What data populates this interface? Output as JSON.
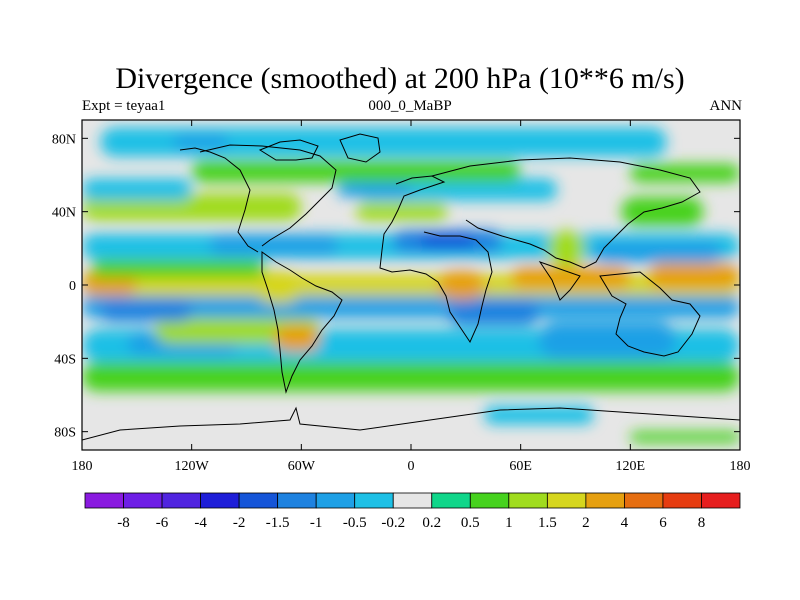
{
  "chart_data": {
    "type": "heatmap",
    "title": "Divergence (smoothed) at 200 hPa (10**6 m/s)",
    "subtitle_left": "Expt = teyaa1",
    "subtitle_center": "000_0_MaBP",
    "subtitle_right": "ANN",
    "x_axis": {
      "range": [
        -180,
        180
      ],
      "ticks": [
        -180,
        -120,
        -60,
        0,
        60,
        120,
        180
      ],
      "tick_labels": [
        "180",
        "120W",
        "60W",
        "0",
        "60E",
        "120E",
        "180"
      ]
    },
    "y_axis": {
      "range": [
        -90,
        90
      ],
      "ticks": [
        80,
        40,
        0,
        -40,
        -80
      ],
      "tick_labels": [
        "80N",
        "40N",
        "0",
        "40S",
        "80S"
      ]
    },
    "colorbar": {
      "labels": [
        "-8",
        "-6",
        "-4",
        "-2",
        "-1.5",
        "-1",
        "-0.5",
        "-0.2",
        "0.2",
        "0.5",
        "1",
        "1.5",
        "2",
        "4",
        "6",
        "8"
      ],
      "colors": [
        "#8a1ae0",
        "#6e1ee6",
        "#5024e0",
        "#1e1ed8",
        "#1555d8",
        "#1e82e0",
        "#1ea0e6",
        "#1ec0e6",
        "#e6e6e6",
        "#10d68a",
        "#46d21e",
        "#a0dc1e",
        "#d6d61e",
        "#e6a010",
        "#e66e10",
        "#e63c10",
        "#e61e1e"
      ]
    },
    "field_regions": [
      {
        "level": 0.5,
        "lon": [
          -180,
          180
        ],
        "lat": [
          -58,
          -42
        ]
      },
      {
        "level": -0.5,
        "lon": [
          -180,
          180
        ],
        "lat": [
          -42,
          -24
        ]
      },
      {
        "level": -1,
        "lon": [
          -155,
          -95
        ],
        "lat": [
          -38,
          -26
        ]
      },
      {
        "level": -0.5,
        "lon": [
          -20,
          40
        ],
        "lat": [
          -42,
          -28
        ]
      },
      {
        "level": 1,
        "lon": [
          -140,
          -50
        ],
        "lat": [
          -32,
          -16
        ]
      },
      {
        "level": -1,
        "lon": [
          70,
          145
        ],
        "lat": [
          -40,
          -20
        ]
      },
      {
        "level": -1,
        "lon": [
          -180,
          180
        ],
        "lat": [
          -18,
          -5
        ]
      },
      {
        "level": -1.5,
        "lon": [
          -170,
          -120
        ],
        "lat": [
          -20,
          -8
        ]
      },
      {
        "level": -1.5,
        "lon": [
          20,
          70
        ],
        "lat": [
          -22,
          -8
        ]
      },
      {
        "level": 1.5,
        "lon": [
          -180,
          180
        ],
        "lat": [
          -6,
          6
        ]
      },
      {
        "level": 2,
        "lon": [
          -180,
          -150
        ],
        "lat": [
          -6,
          8
        ]
      },
      {
        "level": 2,
        "lon": [
          15,
          40
        ],
        "lat": [
          -8,
          8
        ]
      },
      {
        "level": 1.5,
        "lon": [
          -85,
          -60
        ],
        "lat": [
          -10,
          8
        ]
      },
      {
        "level": 2,
        "lon": [
          55,
          120
        ],
        "lat": [
          -2,
          10
        ]
      },
      {
        "level": 2,
        "lon": [
          130,
          180
        ],
        "lat": [
          -2,
          12
        ]
      },
      {
        "level": 2,
        "lon": [
          -75,
          -50
        ],
        "lat": [
          -36,
          -22
        ]
      },
      {
        "level": 0.5,
        "lon": [
          -175,
          -80
        ],
        "lat": [
          4,
          14
        ]
      },
      {
        "level": -0.5,
        "lon": [
          -180,
          180
        ],
        "lat": [
          14,
          28
        ]
      },
      {
        "level": -1,
        "lon": [
          -110,
          -40
        ],
        "lat": [
          16,
          28
        ]
      },
      {
        "level": -1.5,
        "lon": [
          -10,
          50
        ],
        "lat": [
          18,
          30
        ]
      },
      {
        "level": -2,
        "lon": [
          5,
          35
        ],
        "lat": [
          20,
          28
        ]
      },
      {
        "level": -1,
        "lon": [
          100,
          170
        ],
        "lat": [
          12,
          24
        ]
      },
      {
        "level": 1,
        "lon": [
          75,
          95
        ],
        "lat": [
          10,
          30
        ]
      },
      {
        "level": 1,
        "lon": [
          -180,
          -60
        ],
        "lat": [
          35,
          50
        ]
      },
      {
        "level": 1,
        "lon": [
          -30,
          20
        ],
        "lat": [
          35,
          45
        ]
      },
      {
        "level": 0.5,
        "lon": [
          115,
          160
        ],
        "lat": [
          32,
          48
        ]
      },
      {
        "level": -0.5,
        "lon": [
          -180,
          -120
        ],
        "lat": [
          46,
          58
        ]
      },
      {
        "level": -0.5,
        "lon": [
          -30,
          80
        ],
        "lat": [
          46,
          58
        ]
      },
      {
        "level": -1,
        "lon": [
          -40,
          0
        ],
        "lat": [
          48,
          56
        ]
      },
      {
        "level": 0.5,
        "lon": [
          -120,
          60
        ],
        "lat": [
          56,
          68
        ]
      },
      {
        "level": 0.5,
        "lon": [
          120,
          180
        ],
        "lat": [
          56,
          66
        ]
      },
      {
        "level": -0.5,
        "lon": [
          -170,
          140
        ],
        "lat": [
          70,
          86
        ]
      },
      {
        "level": -1,
        "lon": [
          -130,
          -100
        ],
        "lat": [
          74,
          82
        ]
      },
      {
        "level": -0.5,
        "lon": [
          40,
          100
        ],
        "lat": [
          -76,
          -66
        ]
      },
      {
        "level": 0.5,
        "lon": [
          120,
          180
        ],
        "lat": [
          -86,
          -80
        ]
      }
    ]
  }
}
